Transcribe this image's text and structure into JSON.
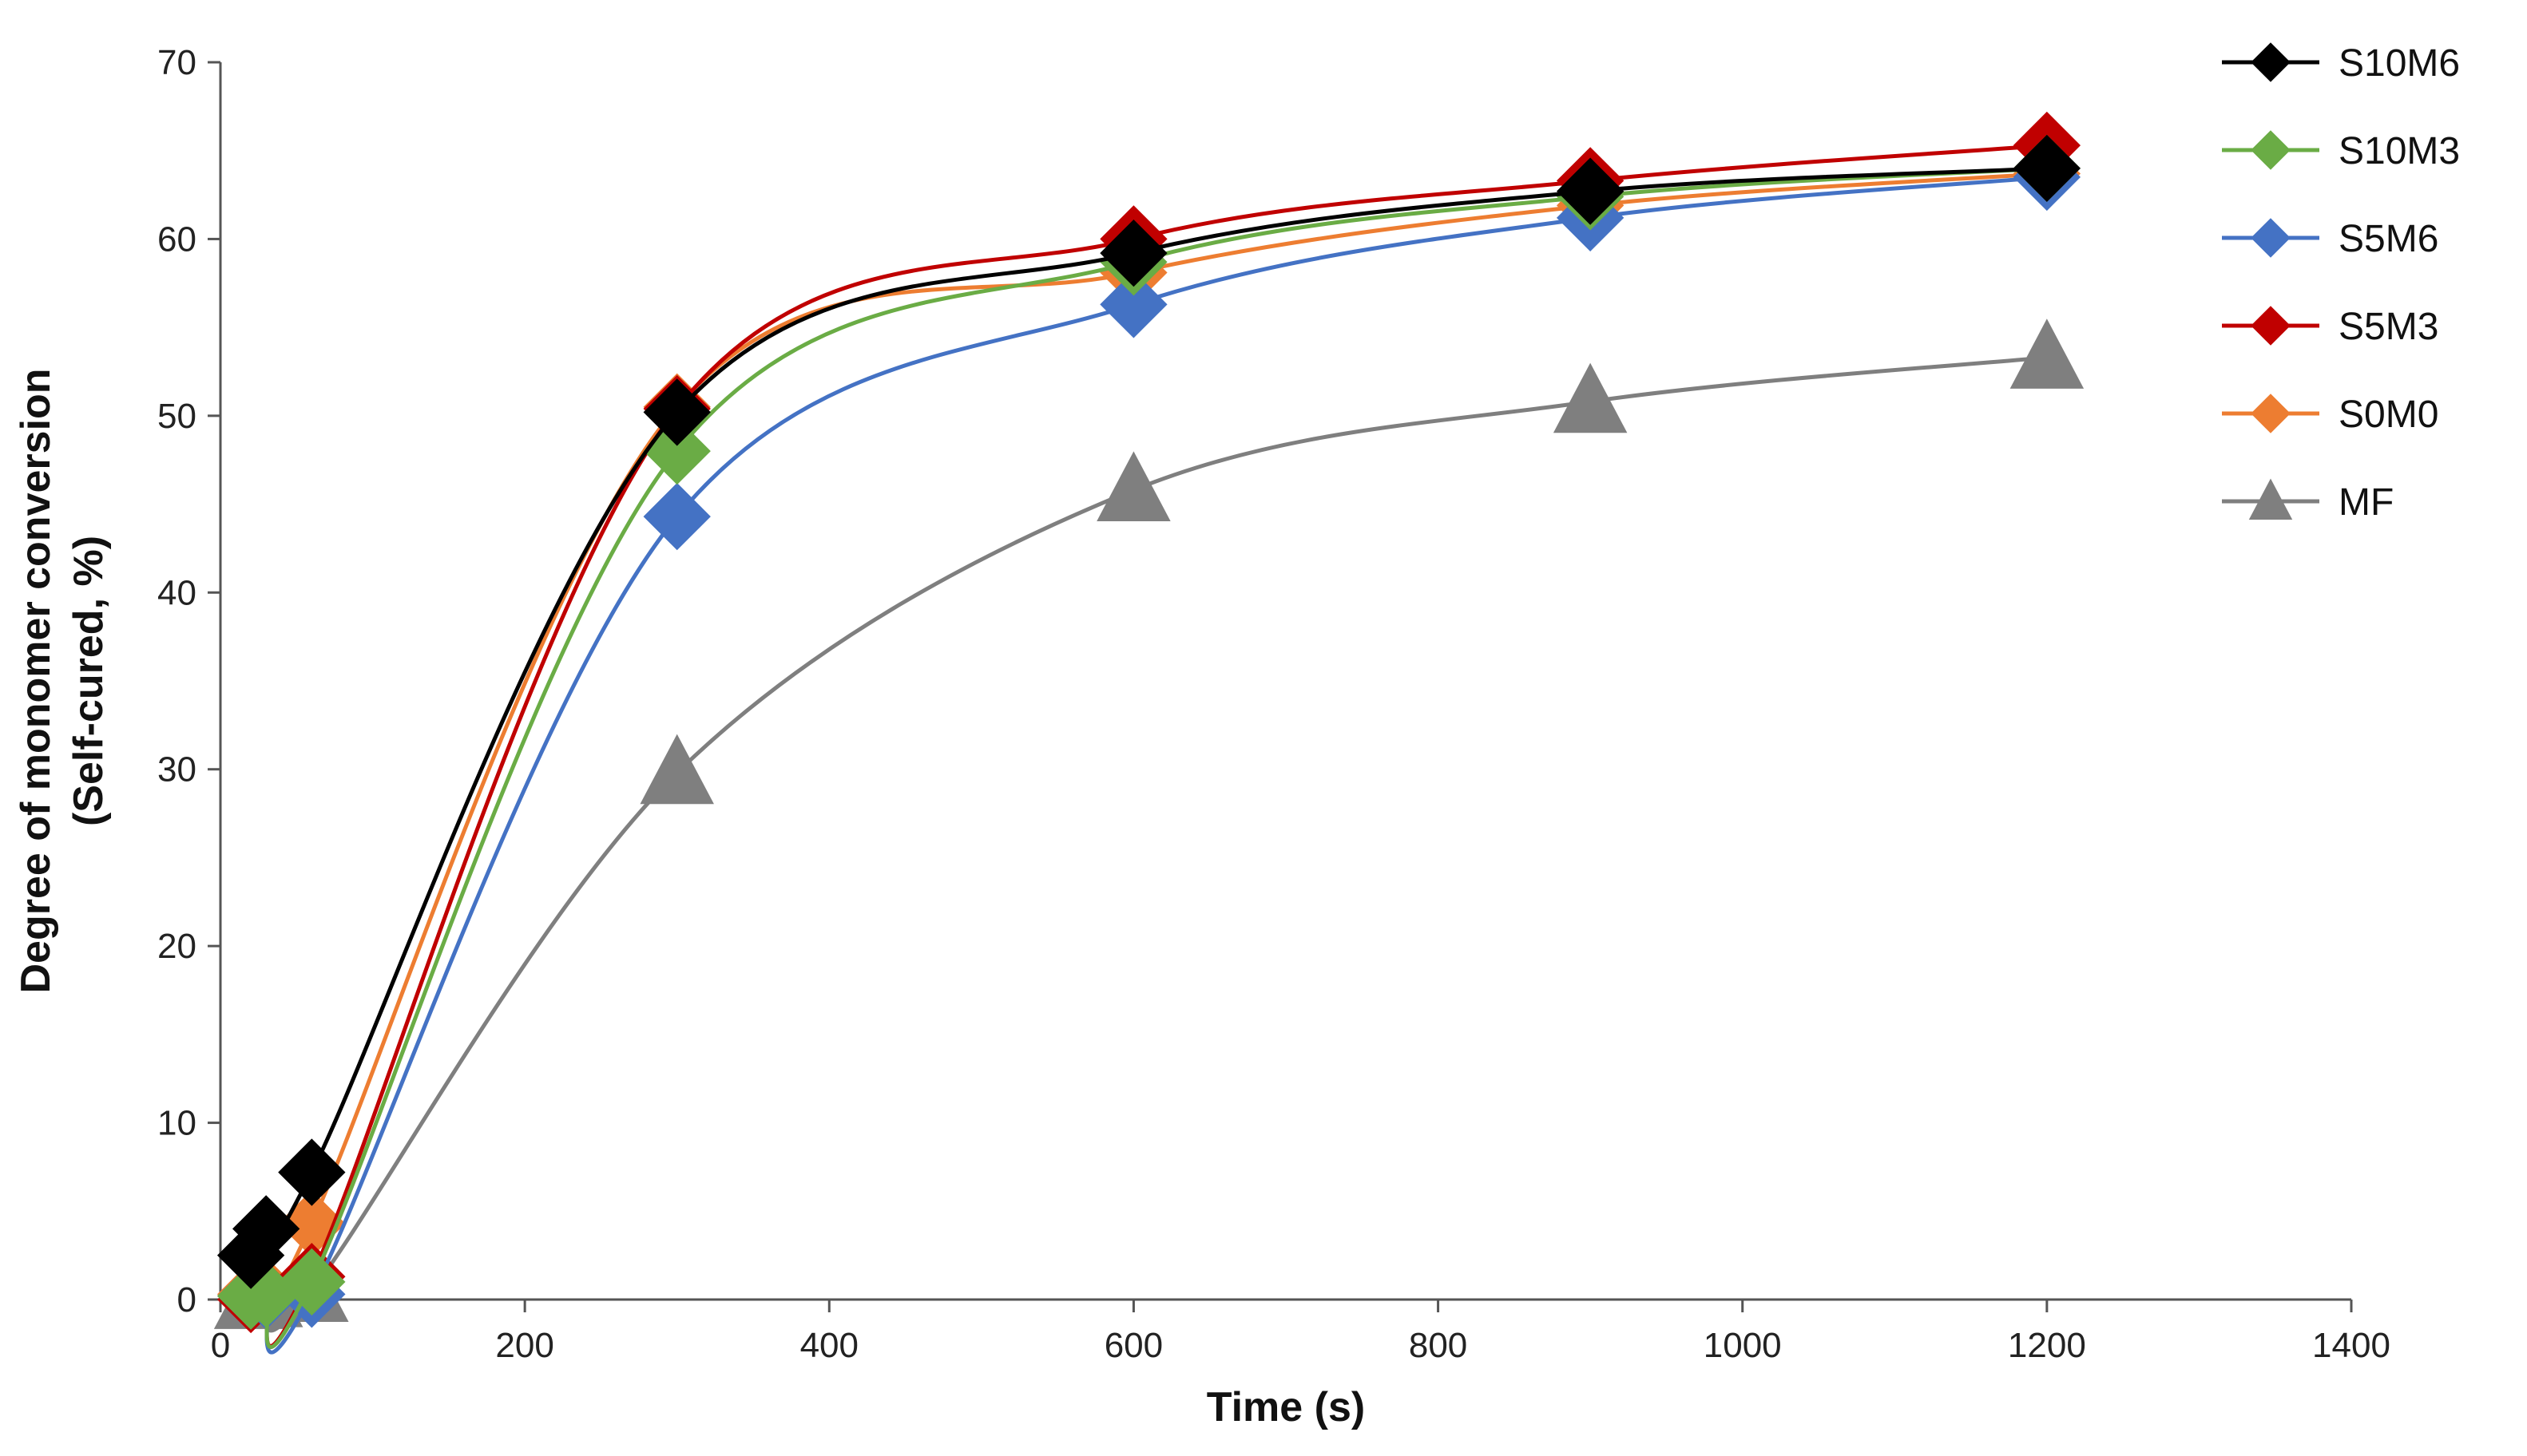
{
  "chart_data": {
    "type": "line",
    "title": "",
    "xlabel": "Time (s)",
    "ylabel_lines": [
      "Degree of monomer conversion",
      "(Self-cured, %)"
    ],
    "xlim": [
      0,
      1400
    ],
    "ylim": [
      0,
      70
    ],
    "xticks": [
      0,
      200,
      400,
      600,
      800,
      1000,
      1200,
      1400
    ],
    "yticks": [
      0,
      10,
      20,
      30,
      40,
      50,
      60,
      70
    ],
    "grid": false,
    "legend_position": "top-right",
    "series": [
      {
        "name": "S10M6",
        "color": "#000000",
        "marker": "diamond",
        "x": [
          20,
          30,
          60,
          300,
          600,
          900,
          1200
        ],
        "y": [
          2.5,
          4.0,
          7.2,
          50.2,
          59.2,
          62.7,
          64.0
        ]
      },
      {
        "name": "S10M3",
        "color": "#6aac45",
        "marker": "diamond",
        "x": [
          20,
          30,
          60,
          300,
          600,
          900,
          1200
        ],
        "y": [
          0.2,
          0.3,
          1.0,
          48.0,
          58.7,
          62.4,
          64.0
        ]
      },
      {
        "name": "S5M6",
        "color": "#4472c4",
        "marker": "diamond",
        "x": [
          20,
          30,
          60,
          300,
          600,
          900,
          1200
        ],
        "y": [
          0.2,
          0.2,
          0.3,
          44.3,
          56.3,
          61.2,
          63.5
        ]
      },
      {
        "name": "S5M3",
        "color": "#c00000",
        "marker": "diamond",
        "x": [
          20,
          30,
          60,
          300,
          600,
          900,
          1200
        ],
        "y": [
          0.0,
          0.3,
          1.3,
          50.4,
          60.0,
          63.3,
          65.3
        ]
      },
      {
        "name": "S0M0",
        "color": "#ed7d31",
        "marker": "diamond",
        "x": [
          20,
          30,
          60,
          300,
          600,
          900,
          1200
        ],
        "y": [
          0.3,
          0.5,
          4.3,
          50.5,
          58.1,
          61.9,
          63.7
        ]
      },
      {
        "name": "MF",
        "color": "#7f7f7f",
        "marker": "triangle",
        "x": [
          20,
          30,
          60,
          300,
          600,
          900,
          1200
        ],
        "y": [
          0.1,
          0.2,
          0.5,
          29.8,
          45.8,
          50.8,
          53.3
        ]
      }
    ]
  }
}
